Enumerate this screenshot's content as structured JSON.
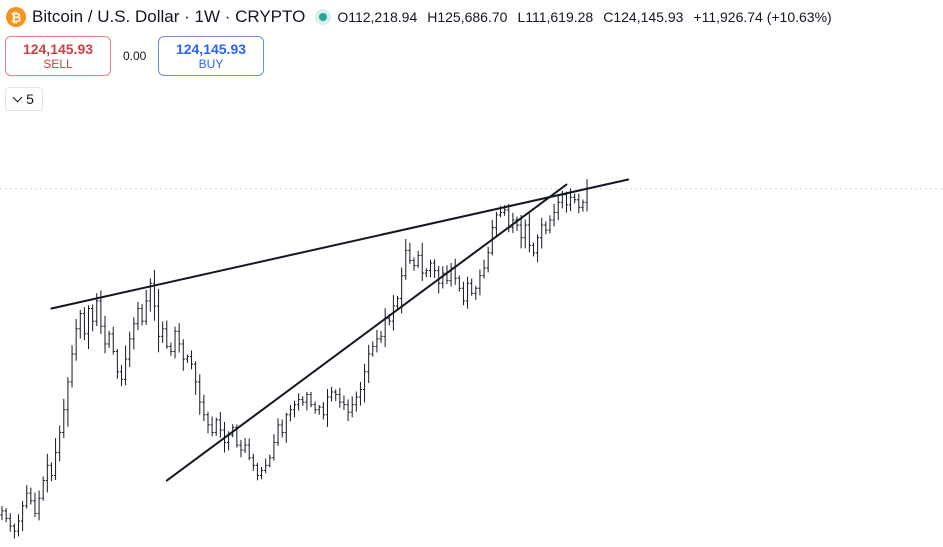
{
  "header": {
    "symbol_icon": "bitcoin-icon",
    "symbol_icon_glyph": "₿",
    "title": "Bitcoin / U.S. Dollar · 1W · CRYPTO",
    "status_color": "#26a69a",
    "open": "O112,218.94",
    "high": "H125,686.70",
    "low": "L111,619.28",
    "close": "C124,145.93",
    "change": "+11,926.74 (+10.63%)"
  },
  "trade": {
    "sell_price": "124,145.93",
    "sell_label": "SELL",
    "spread": "0.00",
    "buy_price": "124,145.93",
    "buy_label": "BUY"
  },
  "indicators": {
    "collapse_icon": "chevron-down-icon",
    "count": "5"
  },
  "chart_data": {
    "type": "ohlc",
    "interval": "1W",
    "bar_color": "#131722",
    "dashed_reference": 124145.93,
    "ylim": [
      50000,
      135000
    ],
    "note_shape": "rising wedge drawn with two trend lines",
    "closes": [
      60500,
      59000,
      57500,
      56500,
      58500,
      61500,
      64000,
      62500,
      60000,
      63000,
      66500,
      69500,
      67500,
      72000,
      76000,
      80500,
      86000,
      91500,
      96500,
      99500,
      95500,
      100500,
      98000,
      102000,
      97000,
      93500,
      95500,
      92000,
      88000,
      86500,
      90500,
      94500,
      97500,
      100500,
      98000,
      102000,
      105500,
      101000,
      95000,
      96500,
      93000,
      92000,
      96000,
      93500,
      90500,
      91000,
      89500,
      86000,
      82000,
      79500,
      77500,
      76000,
      78500,
      76500,
      74000,
      75500,
      77000,
      73500,
      72500,
      73500,
      71000,
      69500,
      67500,
      68500,
      69500,
      71000,
      74000,
      77500,
      76000,
      79500,
      80500,
      81500,
      82500,
      82000,
      83500,
      81500,
      80500,
      81000,
      79500,
      83000,
      84000,
      83500,
      82000,
      81500,
      80000,
      81500,
      83000,
      84500,
      88000,
      91500,
      93000,
      94500,
      95000,
      98500,
      98000,
      101000,
      102500,
      107000,
      112000,
      110000,
      109000,
      111000,
      107500,
      108000,
      109500,
      108000,
      105500,
      107500,
      106000,
      108500,
      106500,
      104500,
      102000,
      105500,
      103500,
      104500,
      107000,
      108500,
      111500,
      116500,
      119000,
      119500,
      120000,
      116500,
      118000,
      117000,
      114500,
      117000,
      113000,
      111500,
      114500,
      117000,
      116000,
      118000,
      119500,
      121500,
      123000,
      121000,
      122500,
      122000,
      120500,
      121500,
      124145.93
    ],
    "trendlines": [
      {
        "name": "upper",
        "from": {
          "bar": 12,
          "price": 100500
        },
        "to": {
          "bar": 152,
          "price": 126000
        }
      },
      {
        "name": "lower",
        "from": {
          "bar": 40,
          "price": 66500
        },
        "to": {
          "bar": 137,
          "price": 125000
        }
      }
    ]
  }
}
